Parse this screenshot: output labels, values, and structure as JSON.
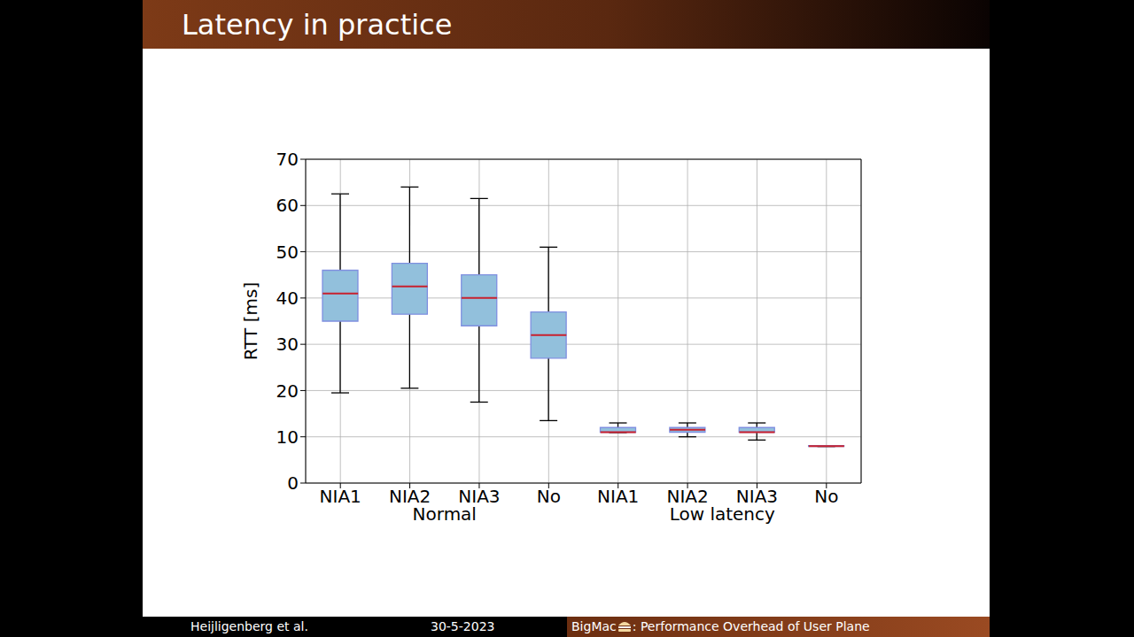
{
  "slide": {
    "title": "Latency in practice",
    "footer": [
      "Heijligenberg et al.",
      "30-5-2023",
      "BigMac",
      ": Performance Overhead of User Plane"
    ]
  },
  "chart_data": {
    "type": "box",
    "categories": [
      "NIA1",
      "NIA2",
      "NIA3",
      "No",
      "NIA1",
      "NIA2",
      "NIA3",
      "No"
    ],
    "group_labels": [
      "Normal",
      "Low latency"
    ],
    "boxes": [
      {
        "whislo": 19.5,
        "q1": 35,
        "med": 41,
        "q3": 46,
        "whishi": 62.5
      },
      {
        "whislo": 20.5,
        "q1": 36.5,
        "med": 42.5,
        "q3": 47.5,
        "whishi": 64
      },
      {
        "whislo": 17.5,
        "q1": 34,
        "med": 40,
        "q3": 45,
        "whishi": 61.5
      },
      {
        "whislo": 13.5,
        "q1": 27,
        "med": 32,
        "q3": 37,
        "whishi": 51
      },
      {
        "whislo": 10.9,
        "q1": 11,
        "med": 11,
        "q3": 12,
        "whishi": 13
      },
      {
        "whislo": 10,
        "q1": 11,
        "med": 11.5,
        "q3": 12,
        "whishi": 13
      },
      {
        "whislo": 9.3,
        "q1": 11,
        "med": 11,
        "q3": 12,
        "whishi": 13
      },
      {
        "whislo": 7.9,
        "q1": 7.9,
        "med": 8,
        "q3": 8.1,
        "whishi": 8.1
      }
    ],
    "color": "#92c0dc",
    "y_label": "RTT [ms]",
    "ylim": [
      0,
      70
    ],
    "yticks": [
      0,
      10,
      20,
      30,
      40,
      50,
      60,
      70
    ],
    "grid": true
  }
}
